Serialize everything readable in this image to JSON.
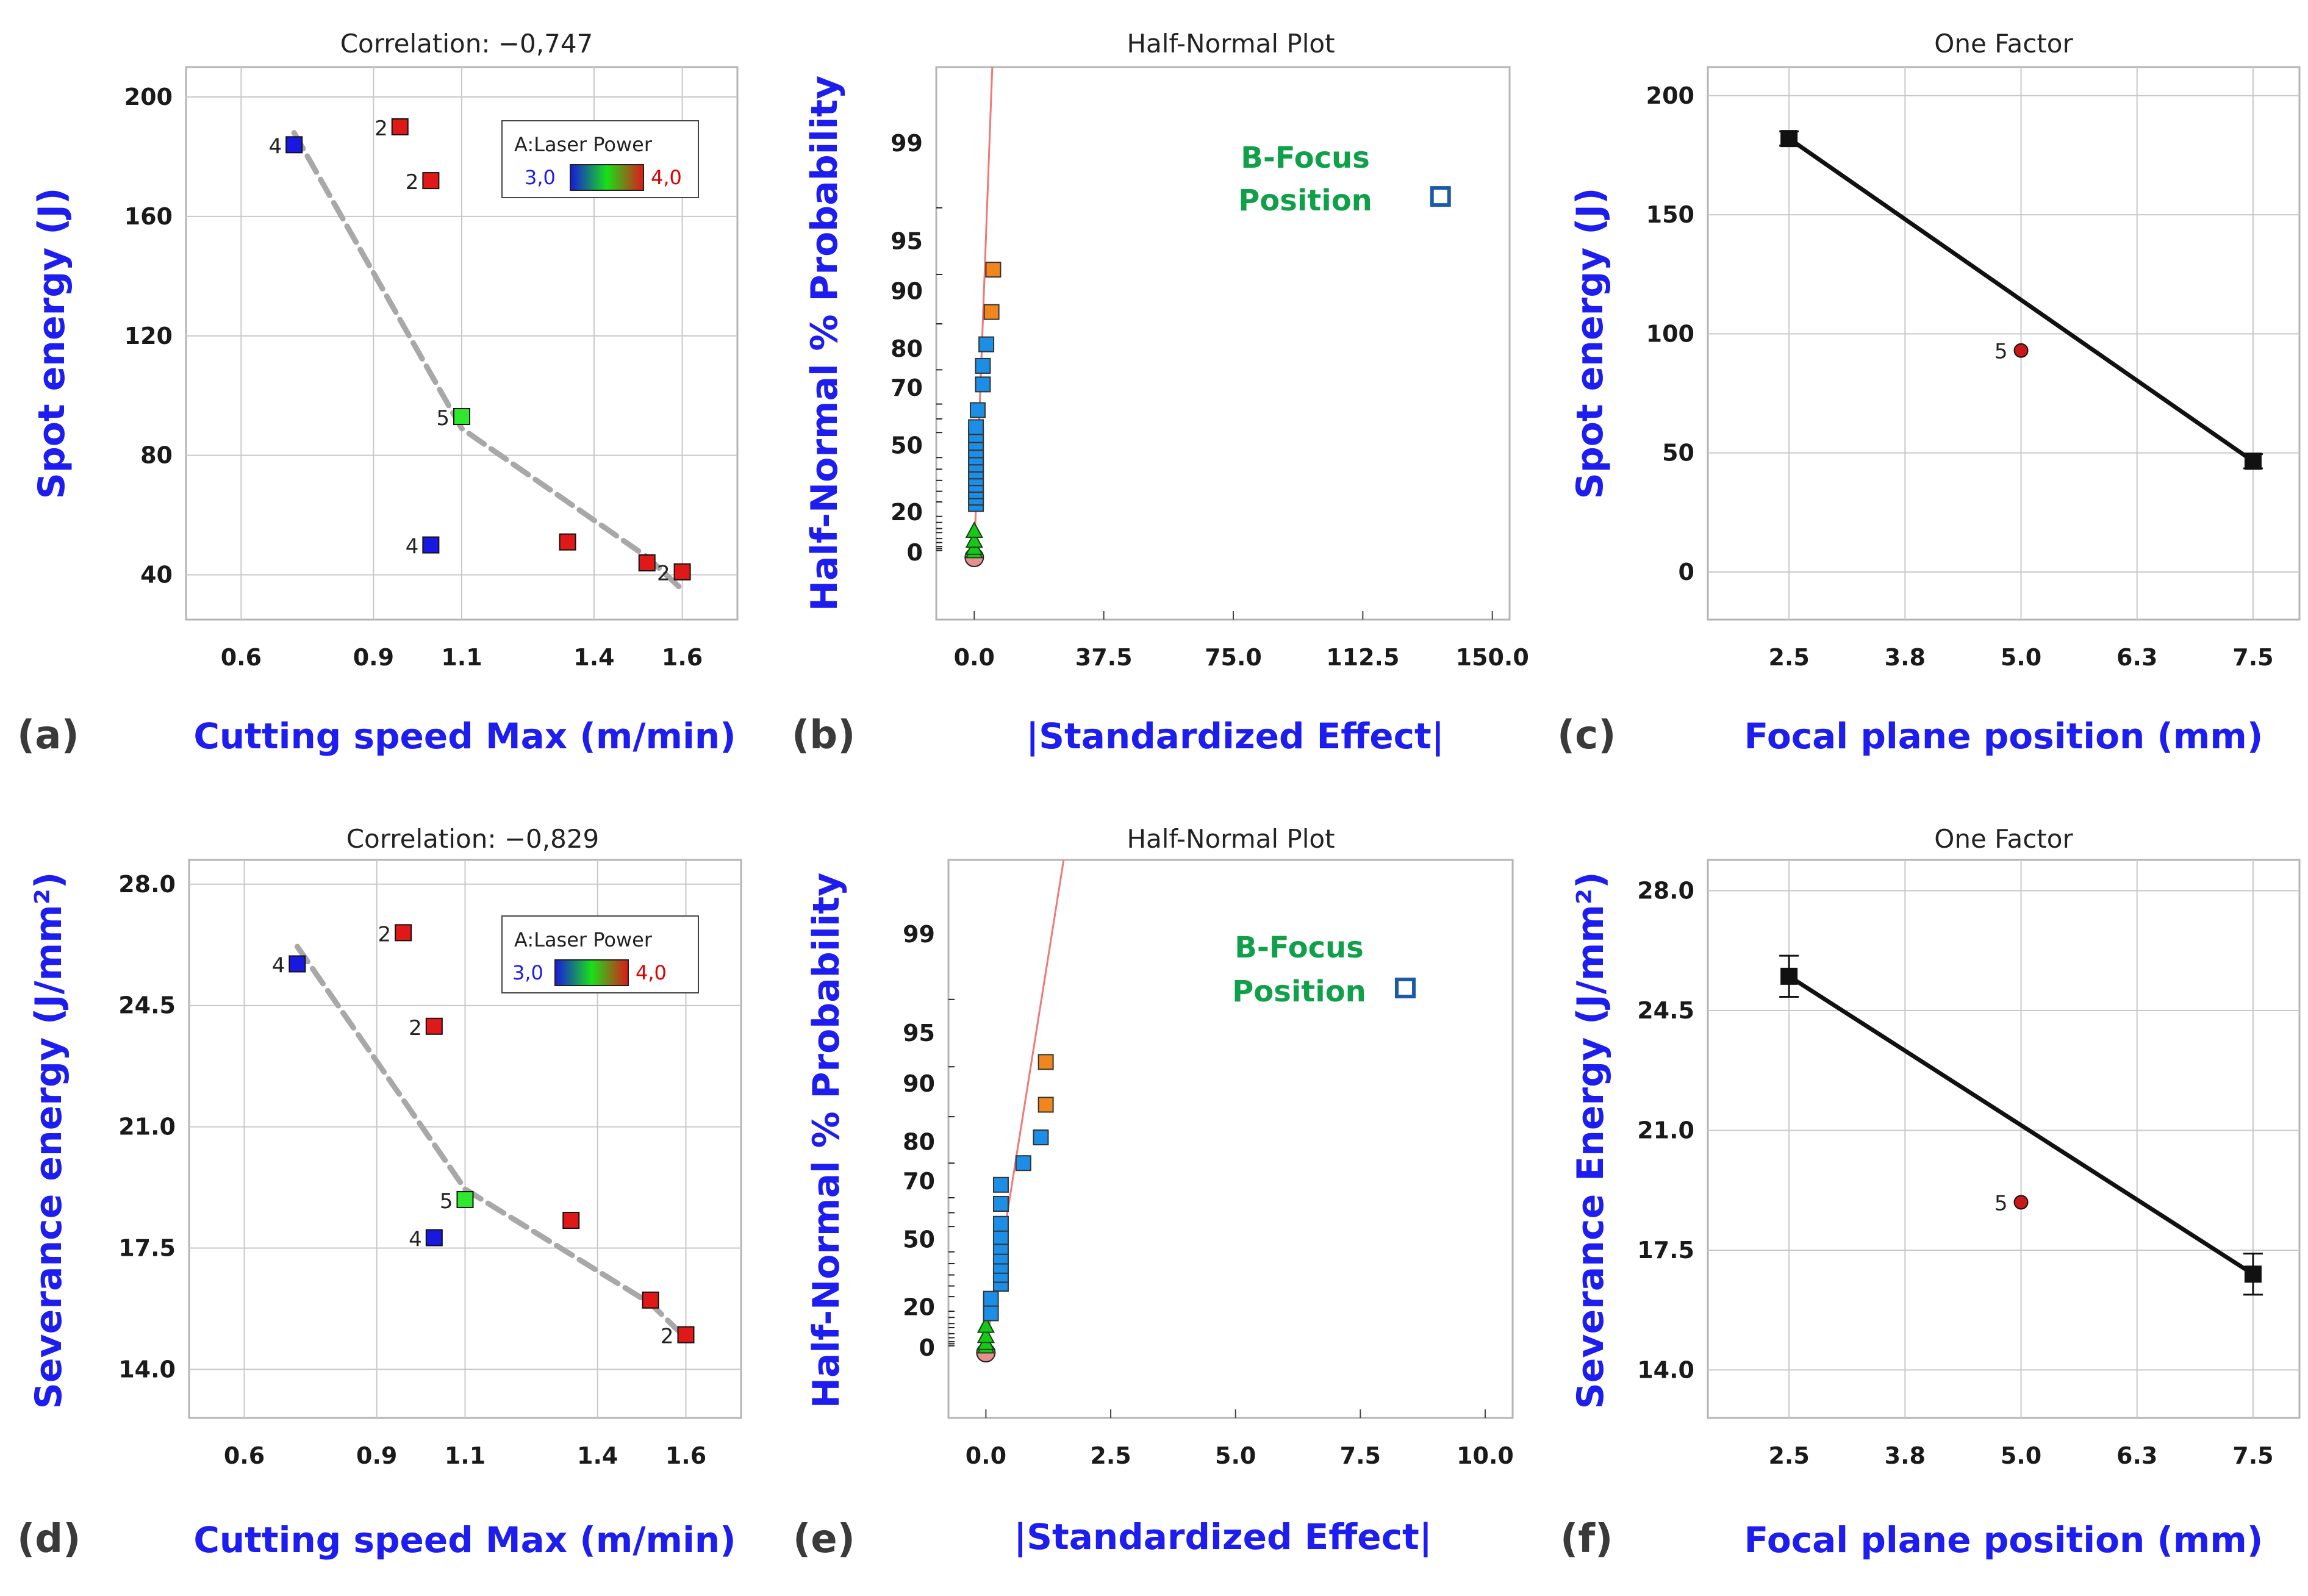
{
  "figure": {
    "panels": [
      {
        "id": "a",
        "label": "(a)",
        "title": "Correlation: −0,747"
      },
      {
        "id": "b",
        "label": "(b)",
        "title": "Half-Normal Plot"
      },
      {
        "id": "c",
        "label": "(c)",
        "title": "One Factor"
      },
      {
        "id": "d",
        "label": "(d)",
        "title": "Correlation: −0,829"
      },
      {
        "id": "e",
        "label": "(e)",
        "title": "Half-Normal Plot"
      },
      {
        "id": "f",
        "label": "(f)",
        "title": "One Factor"
      }
    ]
  },
  "colors": {
    "axis_label": "#1d1df0",
    "blue_point": "#1818e0",
    "red_point": "#e01818",
    "green_point": "#2ee82e",
    "trend": "#a8a8a8",
    "effect_blue": "#1c8ee6",
    "effect_orange": "#f0861c",
    "error_green": "#18c818",
    "ref_line": "#f07878",
    "annotation": "#10a04a"
  },
  "chart_data": [
    {
      "id": "a",
      "type": "scatter",
      "title": "Correlation: −0,747",
      "xlabel": "Cutting speed Max (m/min)",
      "ylabel": "Spot energy (J)",
      "xlim": [
        0.475,
        1.725
      ],
      "ylim": [
        25,
        210
      ],
      "xticks": [
        0.6,
        0.9,
        1.1,
        1.4,
        1.6
      ],
      "xtick_labels": [
        "0.6",
        "0.9",
        "1.1",
        "1.4",
        "1.6"
      ],
      "yticks": [
        40,
        80,
        120,
        160,
        200
      ],
      "ytick_labels": [
        "40",
        "80",
        "120",
        "160",
        "200"
      ],
      "legend": {
        "title": "A:Laser Power",
        "min_label": "3,0",
        "max_label": "4,0",
        "position": "top-right"
      },
      "points": [
        {
          "x": 0.72,
          "y": 184,
          "color": "blue",
          "count": "4"
        },
        {
          "x": 0.96,
          "y": 190,
          "color": "red",
          "count": "2"
        },
        {
          "x": 1.03,
          "y": 172,
          "color": "red",
          "count": "2"
        },
        {
          "x": 1.1,
          "y": 93,
          "color": "green",
          "count": "5"
        },
        {
          "x": 1.03,
          "y": 50,
          "color": "blue",
          "count": "4"
        },
        {
          "x": 1.34,
          "y": 51,
          "color": "red",
          "count": ""
        },
        {
          "x": 1.52,
          "y": 44,
          "color": "red",
          "count": ""
        },
        {
          "x": 1.6,
          "y": 41,
          "color": "red",
          "count": "2"
        }
      ],
      "trend": [
        [
          0.72,
          188
        ],
        [
          1.1,
          89
        ],
        [
          1.52,
          46
        ],
        [
          1.6,
          35
        ]
      ]
    },
    {
      "id": "b",
      "type": "scatter",
      "title": "Half-Normal Plot",
      "xlabel": "|Standardized Effect|",
      "ylabel": "Half-Normal % Probability",
      "xlim": [
        -11,
        155
      ],
      "xticks": [
        0,
        37.5,
        75,
        112.5,
        150
      ],
      "xtick_labels": [
        "0.0",
        "37.5",
        "75.0",
        "112.5",
        "150.0"
      ],
      "yticks": [
        0,
        20,
        50,
        70,
        80,
        90,
        95,
        99
      ],
      "ytick_labels": [
        "0",
        "20",
        "50",
        "70",
        "80",
        "90",
        "95",
        "99"
      ],
      "annotation": [
        "B-Focus",
        "Position"
      ],
      "ref_line": [
        [
          0,
          0
        ],
        [
          5.5,
          99.9
        ]
      ],
      "error_points": [
        {
          "x": 0,
          "y": 0.8
        },
        {
          "x": 0,
          "y": 2.5
        },
        {
          "x": 0,
          "y": 6
        },
        {
          "x": 0,
          "y": 11
        }
      ],
      "effect_points": [
        {
          "x": 0.5,
          "y": 24,
          "k": "blue"
        },
        {
          "x": 0.5,
          "y": 27,
          "k": "blue"
        },
        {
          "x": 0.5,
          "y": 30,
          "k": "blue"
        },
        {
          "x": 0.5,
          "y": 33,
          "k": "blue"
        },
        {
          "x": 0.5,
          "y": 36,
          "k": "blue"
        },
        {
          "x": 0.5,
          "y": 39,
          "k": "blue"
        },
        {
          "x": 0.5,
          "y": 42,
          "k": "blue"
        },
        {
          "x": 0.5,
          "y": 45,
          "k": "blue"
        },
        {
          "x": 0.5,
          "y": 48,
          "k": "blue"
        },
        {
          "x": 0.5,
          "y": 51,
          "k": "blue"
        },
        {
          "x": 0.5,
          "y": 54,
          "k": "blue"
        },
        {
          "x": 0.5,
          "y": 57,
          "k": "blue"
        },
        {
          "x": 1.0,
          "y": 63,
          "k": "blue"
        },
        {
          "x": 2.5,
          "y": 71,
          "k": "blue"
        },
        {
          "x": 2.5,
          "y": 76,
          "k": "blue"
        },
        {
          "x": 3.5,
          "y": 81,
          "k": "blue"
        },
        {
          "x": 5.0,
          "y": 87,
          "k": "orange"
        },
        {
          "x": 5.5,
          "y": 92.5,
          "k": "orange"
        },
        {
          "x": 135,
          "y": 97.5,
          "k": "outline"
        }
      ]
    },
    {
      "id": "c",
      "type": "line",
      "title": "One Factor",
      "xlabel": "Focal plane position (mm)",
      "ylabel": "Spot energy (J)",
      "xlim": [
        1.625,
        8.0
      ],
      "ylim": [
        -20,
        212
      ],
      "xticks": [
        2.5,
        3.75,
        5.0,
        6.25,
        7.5
      ],
      "xtick_labels": [
        "2.5",
        "3.8",
        "5.0",
        "6.3",
        "7.5"
      ],
      "yticks": [
        0,
        50,
        100,
        150,
        200
      ],
      "ytick_labels": [
        "0",
        "50",
        "100",
        "150",
        "200"
      ],
      "line": [
        [
          2.5,
          182
        ],
        [
          7.5,
          46.5
        ]
      ],
      "error_bars": [
        {
          "x": 2.5,
          "y": 182,
          "err": 3
        },
        {
          "x": 7.5,
          "y": 46.5,
          "err": 3
        }
      ],
      "points": [
        {
          "x": 5.0,
          "y": 93,
          "count": "5"
        }
      ]
    },
    {
      "id": "d",
      "type": "scatter",
      "title": "Correlation: −0,829",
      "xlabel": "Cutting speed Max (m/min)",
      "ylabel": "Severance energy (J/mm²)",
      "xlim": [
        0.475,
        1.725
      ],
      "ylim": [
        12.6,
        28.7
      ],
      "xticks": [
        0.6,
        0.9,
        1.1,
        1.4,
        1.6
      ],
      "xtick_labels": [
        "0.6",
        "0.9",
        "1.1",
        "1.4",
        "1.6"
      ],
      "yticks": [
        14,
        17.5,
        21,
        24.5,
        28
      ],
      "ytick_labels": [
        "14.0",
        "17.5",
        "21.0",
        "24.5",
        "28.0"
      ],
      "legend": {
        "title": "A:Laser Power",
        "min_label": "3,0",
        "max_label": "4,0",
        "position": "top-right"
      },
      "points": [
        {
          "x": 0.72,
          "y": 25.7,
          "color": "blue",
          "count": "4"
        },
        {
          "x": 0.96,
          "y": 26.6,
          "color": "red",
          "count": "2"
        },
        {
          "x": 1.03,
          "y": 23.9,
          "color": "red",
          "count": "2"
        },
        {
          "x": 1.1,
          "y": 18.9,
          "color": "green",
          "count": "5"
        },
        {
          "x": 1.03,
          "y": 17.8,
          "color": "blue",
          "count": "4"
        },
        {
          "x": 1.34,
          "y": 18.3,
          "color": "red",
          "count": ""
        },
        {
          "x": 1.52,
          "y": 16.0,
          "color": "red",
          "count": ""
        },
        {
          "x": 1.6,
          "y": 15.0,
          "color": "red",
          "count": "2"
        }
      ],
      "trend": [
        [
          0.72,
          26.2
        ],
        [
          1.1,
          19.2
        ],
        [
          1.52,
          15.9
        ],
        [
          1.6,
          14.9
        ]
      ]
    },
    {
      "id": "e",
      "type": "scatter",
      "title": "Half-Normal Plot",
      "xlabel": "|Standardized Effect|",
      "ylabel": "Half-Normal % Probability",
      "xlim": [
        -0.75,
        10.55
      ],
      "xticks": [
        0,
        2.5,
        5,
        7.5,
        10
      ],
      "xtick_labels": [
        "0.0",
        "2.5",
        "5.0",
        "7.5",
        "10.0"
      ],
      "yticks": [
        0,
        20,
        50,
        70,
        80,
        90,
        95,
        99
      ],
      "ytick_labels": [
        "0",
        "20",
        "50",
        "70",
        "80",
        "90",
        "95",
        "99"
      ],
      "annotation": [
        "B-Focus",
        "Position"
      ],
      "ref_line": [
        [
          0,
          0
        ],
        [
          1.65,
          99.9
        ]
      ],
      "error_points": [
        {
          "x": 0,
          "y": 0.8
        },
        {
          "x": 0,
          "y": 2.5
        },
        {
          "x": 0,
          "y": 6
        },
        {
          "x": 0,
          "y": 11
        }
      ],
      "effect_points": [
        {
          "x": 0.1,
          "y": 17,
          "k": "blue"
        },
        {
          "x": 0.1,
          "y": 24,
          "k": "blue"
        },
        {
          "x": 0.3,
          "y": 31,
          "k": "blue"
        },
        {
          "x": 0.3,
          "y": 35,
          "k": "blue"
        },
        {
          "x": 0.3,
          "y": 39,
          "k": "blue"
        },
        {
          "x": 0.3,
          "y": 43,
          "k": "blue"
        },
        {
          "x": 0.3,
          "y": 47,
          "k": "blue"
        },
        {
          "x": 0.3,
          "y": 51,
          "k": "blue"
        },
        {
          "x": 0.3,
          "y": 56,
          "k": "blue"
        },
        {
          "x": 0.3,
          "y": 63,
          "k": "blue"
        },
        {
          "x": 0.3,
          "y": 69,
          "k": "blue"
        },
        {
          "x": 0.75,
          "y": 75,
          "k": "blue"
        },
        {
          "x": 1.1,
          "y": 81,
          "k": "blue"
        },
        {
          "x": 1.2,
          "y": 87,
          "k": "orange"
        },
        {
          "x": 1.2,
          "y": 92.5,
          "k": "orange"
        },
        {
          "x": 8.4,
          "y": 97.5,
          "k": "outline"
        }
      ]
    },
    {
      "id": "f",
      "type": "line",
      "title": "One Factor",
      "xlabel": "Focal plane position (mm)",
      "ylabel": "Severance Energy (J/mm²)",
      "xlim": [
        1.625,
        8.0
      ],
      "ylim": [
        12.6,
        28.9
      ],
      "xticks": [
        2.5,
        3.75,
        5.0,
        6.25,
        7.5
      ],
      "xtick_labels": [
        "2.5",
        "3.8",
        "5.0",
        "6.3",
        "7.5"
      ],
      "yticks": [
        14,
        17.5,
        21,
        24.5,
        28
      ],
      "ytick_labels": [
        "14.0",
        "17.5",
        "21.0",
        "24.5",
        "28.0"
      ],
      "line": [
        [
          2.5,
          25.5
        ],
        [
          7.5,
          16.8
        ]
      ],
      "error_bars": [
        {
          "x": 2.5,
          "y": 25.5,
          "err": 0.6
        },
        {
          "x": 7.5,
          "y": 16.8,
          "err": 0.6
        }
      ],
      "points": [
        {
          "x": 5.0,
          "y": 18.9,
          "count": "5"
        }
      ]
    }
  ]
}
